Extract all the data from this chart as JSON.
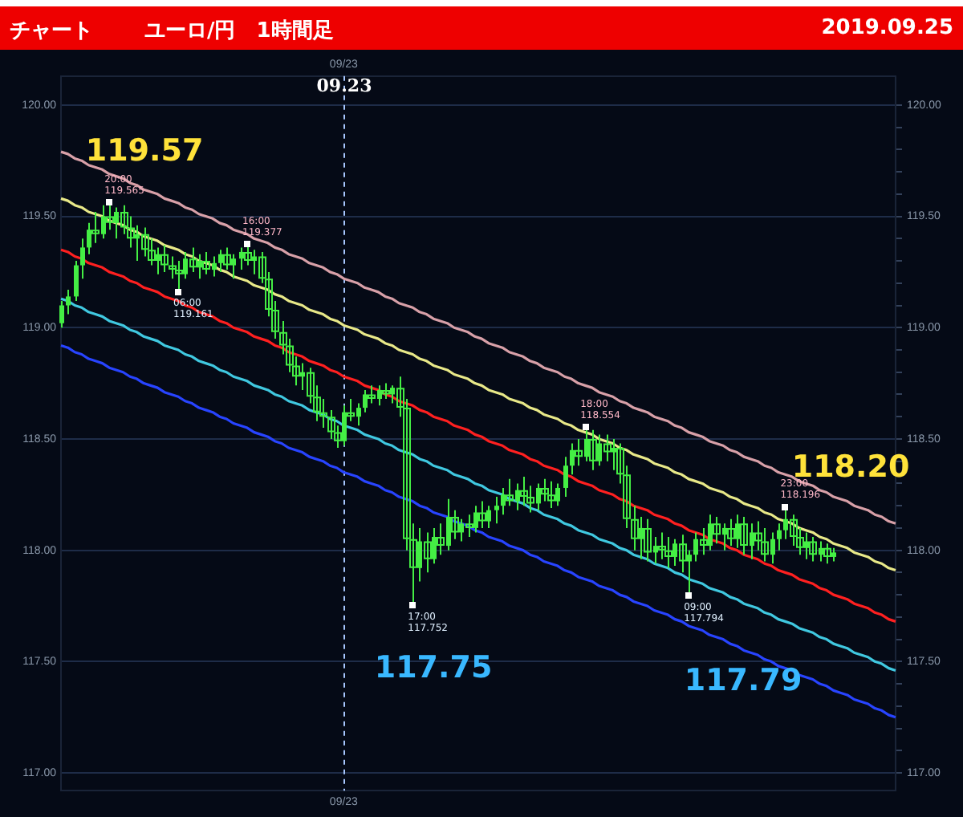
{
  "chart_data": {
    "type": "candlestick",
    "title": "チャート",
    "subtitle": "ユーロ/円　1時間足",
    "categories": [
      null,
      null,
      null,
      null,
      null,
      null,
      null,
      null,
      null,
      null,
      null,
      null,
      null,
      null,
      null,
      null,
      null,
      null,
      null,
      null,
      null,
      null,
      null,
      null,
      null,
      null,
      null,
      null,
      null,
      null,
      null,
      null,
      null,
      null,
      null,
      null,
      null,
      null,
      null,
      null,
      null,
      "09/23",
      null,
      null,
      null,
      null,
      null,
      null,
      null,
      null,
      null,
      null,
      null,
      null,
      null,
      null,
      null,
      null,
      null,
      null,
      null,
      null,
      null,
      null,
      null,
      null,
      null,
      null,
      null,
      null,
      null,
      null,
      null,
      null,
      null,
      null,
      null,
      null,
      null,
      null,
      null,
      null,
      null,
      null,
      null,
      null,
      null,
      null,
      null,
      null,
      null,
      null,
      null,
      null,
      null,
      null,
      null,
      null,
      null,
      null,
      null,
      null,
      null,
      null,
      null,
      null,
      null,
      null,
      null,
      null,
      null,
      null,
      null,
      null,
      null,
      null,
      null,
      null,
      null,
      null,
      null,
      null
    ],
    "color": "#44ee44",
    "ohlc": [
      [
        119.02,
        119.12,
        119.0,
        119.1
      ],
      [
        119.1,
        119.17,
        119.06,
        119.14
      ],
      [
        119.14,
        119.3,
        119.12,
        119.28
      ],
      [
        119.28,
        119.4,
        119.22,
        119.36
      ],
      [
        119.36,
        119.47,
        119.33,
        119.44
      ],
      [
        119.44,
        119.52,
        119.38,
        119.42
      ],
      [
        119.42,
        119.55,
        119.4,
        119.5
      ],
      [
        119.5,
        119.565,
        119.44,
        119.47
      ],
      [
        119.47,
        119.54,
        119.4,
        119.52
      ],
      [
        119.52,
        119.55,
        119.42,
        119.45
      ],
      [
        119.45,
        119.5,
        119.36,
        119.4
      ],
      [
        119.4,
        119.46,
        119.3,
        119.42
      ],
      [
        119.42,
        119.45,
        119.32,
        119.35
      ],
      [
        119.35,
        119.4,
        119.28,
        119.3
      ],
      [
        119.3,
        119.36,
        119.24,
        119.33
      ],
      [
        119.33,
        119.37,
        119.25,
        119.28
      ],
      [
        119.28,
        119.32,
        119.22,
        119.26
      ],
      [
        119.26,
        119.3,
        119.161,
        119.24
      ],
      [
        119.24,
        119.34,
        119.22,
        119.31
      ],
      [
        119.31,
        119.36,
        119.25,
        119.27
      ],
      [
        119.27,
        119.33,
        119.22,
        119.3
      ],
      [
        119.3,
        119.34,
        119.24,
        119.26
      ],
      [
        119.26,
        119.32,
        119.23,
        119.29
      ],
      [
        119.29,
        119.35,
        119.25,
        119.33
      ],
      [
        119.33,
        119.36,
        119.26,
        119.28
      ],
      [
        119.28,
        119.33,
        119.22,
        119.31
      ],
      [
        119.31,
        119.36,
        119.26,
        119.34
      ],
      [
        119.34,
        119.377,
        119.28,
        119.3
      ],
      [
        119.3,
        119.35,
        119.24,
        119.32
      ],
      [
        119.32,
        119.34,
        119.2,
        119.22
      ],
      [
        119.22,
        119.25,
        119.05,
        119.08
      ],
      [
        119.08,
        119.12,
        118.95,
        118.98
      ],
      [
        118.98,
        119.03,
        118.88,
        118.92
      ],
      [
        118.92,
        118.95,
        118.8,
        118.83
      ],
      [
        118.83,
        118.87,
        118.74,
        118.78
      ],
      [
        118.78,
        118.84,
        118.72,
        118.8
      ],
      [
        118.8,
        118.82,
        118.66,
        118.69
      ],
      [
        118.69,
        118.74,
        118.58,
        118.62
      ],
      [
        118.62,
        118.68,
        118.55,
        118.6
      ],
      [
        118.6,
        118.63,
        118.5,
        118.53
      ],
      [
        118.53,
        118.56,
        118.46,
        118.49
      ],
      [
        118.49,
        118.65,
        118.47,
        118.62
      ],
      [
        118.62,
        118.68,
        118.58,
        118.6
      ],
      [
        118.6,
        118.66,
        118.56,
        118.64
      ],
      [
        118.64,
        118.72,
        118.62,
        118.7
      ],
      [
        118.7,
        118.74,
        118.66,
        118.68
      ],
      [
        118.68,
        118.74,
        118.65,
        118.72
      ],
      [
        118.72,
        118.75,
        118.68,
        118.7
      ],
      [
        118.7,
        118.74,
        118.66,
        118.73
      ],
      [
        118.73,
        118.78,
        118.6,
        118.64
      ],
      [
        118.64,
        118.68,
        118.0,
        118.05
      ],
      [
        118.05,
        118.12,
        117.752,
        117.92
      ],
      [
        117.92,
        118.1,
        117.86,
        118.04
      ],
      [
        118.04,
        118.08,
        117.9,
        117.96
      ],
      [
        117.96,
        118.1,
        117.94,
        118.06
      ],
      [
        118.06,
        118.12,
        117.98,
        118.02
      ],
      [
        118.02,
        118.23,
        118.0,
        118.15
      ],
      [
        118.15,
        118.18,
        118.05,
        118.08
      ],
      [
        118.08,
        118.14,
        118.04,
        118.12
      ],
      [
        118.12,
        118.16,
        118.06,
        118.1
      ],
      [
        118.1,
        118.2,
        118.08,
        118.17
      ],
      [
        118.17,
        118.22,
        118.1,
        118.13
      ],
      [
        118.13,
        118.2,
        118.1,
        118.18
      ],
      [
        118.18,
        118.24,
        118.12,
        118.2
      ],
      [
        118.2,
        118.28,
        118.16,
        118.25
      ],
      [
        118.25,
        118.32,
        118.2,
        118.22
      ],
      [
        118.22,
        118.3,
        118.18,
        118.27
      ],
      [
        118.27,
        118.33,
        118.2,
        118.24
      ],
      [
        118.24,
        118.29,
        118.17,
        118.21
      ],
      [
        118.21,
        118.3,
        118.18,
        118.28
      ],
      [
        118.28,
        118.32,
        118.22,
        118.25
      ],
      [
        118.25,
        118.31,
        118.19,
        118.22
      ],
      [
        118.22,
        118.3,
        118.2,
        118.28
      ],
      [
        118.28,
        118.42,
        118.24,
        118.38
      ],
      [
        118.38,
        118.48,
        118.34,
        118.45
      ],
      [
        118.45,
        118.5,
        118.38,
        118.42
      ],
      [
        118.42,
        118.554,
        118.4,
        118.5
      ],
      [
        118.5,
        118.54,
        118.36,
        118.4
      ],
      [
        118.4,
        118.52,
        118.38,
        118.48
      ],
      [
        118.48,
        118.52,
        118.4,
        118.44
      ],
      [
        118.44,
        118.5,
        118.36,
        118.46
      ],
      [
        118.46,
        118.48,
        118.3,
        118.34
      ],
      [
        118.34,
        118.38,
        118.1,
        118.14
      ],
      [
        118.14,
        118.2,
        118.0,
        118.05
      ],
      [
        118.05,
        118.15,
        117.96,
        118.1
      ],
      [
        118.1,
        118.14,
        117.95,
        117.99
      ],
      [
        117.99,
        118.06,
        117.94,
        118.02
      ],
      [
        118.02,
        118.08,
        117.96,
        118.0
      ],
      [
        118.0,
        118.06,
        117.92,
        117.97
      ],
      [
        117.97,
        118.05,
        117.93,
        118.03
      ],
      [
        118.03,
        118.07,
        117.9,
        117.95
      ],
      [
        117.95,
        118.0,
        117.794,
        117.98
      ],
      [
        117.98,
        118.08,
        117.95,
        118.05
      ],
      [
        118.05,
        118.1,
        117.98,
        118.02
      ],
      [
        118.02,
        118.16,
        118.0,
        118.12
      ],
      [
        118.12,
        118.15,
        118.03,
        118.07
      ],
      [
        118.07,
        118.12,
        118.0,
        118.1
      ],
      [
        118.1,
        118.14,
        118.02,
        118.05
      ],
      [
        118.05,
        118.16,
        118.01,
        118.12
      ],
      [
        118.12,
        118.15,
        117.98,
        118.02
      ],
      [
        118.02,
        118.12,
        117.96,
        118.08
      ],
      [
        118.08,
        118.13,
        118.0,
        118.04
      ],
      [
        118.04,
        118.1,
        117.95,
        117.98
      ],
      [
        117.98,
        118.08,
        117.94,
        118.05
      ],
      [
        118.05,
        118.12,
        118.0,
        118.09
      ],
      [
        118.09,
        118.196,
        118.05,
        118.14
      ],
      [
        118.14,
        118.16,
        118.02,
        118.06
      ],
      [
        118.06,
        118.1,
        117.98,
        118.01
      ],
      [
        118.01,
        118.08,
        117.96,
        118.04
      ],
      [
        118.04,
        118.06,
        117.95,
        117.98
      ],
      [
        117.98,
        118.04,
        117.95,
        118.01
      ],
      [
        118.01,
        118.03,
        117.94,
        117.97
      ],
      [
        117.97,
        118.01,
        117.95,
        117.99
      ],
      null,
      null,
      null,
      null,
      null,
      null,
      null,
      null,
      null
    ],
    "series": [
      {
        "type": "line",
        "color": "#d8a0a8",
        "values": [
          119.79,
          119.78,
          119.76,
          119.75,
          119.73,
          119.72,
          119.71,
          119.69,
          119.68,
          119.67,
          119.65,
          119.64,
          119.62,
          119.61,
          119.6,
          119.58,
          119.57,
          119.56,
          119.54,
          119.53,
          119.51,
          119.5,
          119.49,
          119.47,
          119.46,
          119.44,
          119.43,
          119.42,
          119.4,
          119.39,
          119.38,
          119.36,
          119.35,
          119.33,
          119.32,
          119.31,
          119.29,
          119.28,
          119.27,
          119.25,
          119.24,
          119.22,
          119.21,
          119.2,
          119.18,
          119.17,
          119.16,
          119.14,
          119.13,
          119.11,
          119.1,
          119.09,
          119.07,
          119.06,
          119.04,
          119.03,
          119.02,
          119.0,
          118.99,
          118.98,
          118.96,
          118.95,
          118.93,
          118.92,
          118.91,
          118.89,
          118.88,
          118.87,
          118.85,
          118.84,
          118.82,
          118.81,
          118.8,
          118.78,
          118.77,
          118.75,
          118.74,
          118.73,
          118.71,
          118.7,
          118.69,
          118.67,
          118.66,
          118.64,
          118.63,
          118.62,
          118.6,
          118.59,
          118.58,
          118.56,
          118.55,
          118.53,
          118.52,
          118.51,
          118.49,
          118.48,
          118.47,
          118.45,
          118.44,
          118.42,
          118.41,
          118.4,
          118.38,
          118.37,
          118.35,
          118.34,
          118.33,
          118.31,
          118.3,
          118.29,
          118.27,
          118.26,
          118.24,
          118.23,
          118.22,
          118.2,
          118.19,
          118.18,
          118.16,
          118.15,
          118.13,
          118.12
        ]
      },
      {
        "type": "line",
        "color": "#e8e888",
        "values": [
          119.58,
          119.57,
          119.55,
          119.54,
          119.52,
          119.51,
          119.5,
          119.48,
          119.47,
          119.46,
          119.44,
          119.43,
          119.41,
          119.4,
          119.39,
          119.37,
          119.36,
          119.35,
          119.33,
          119.32,
          119.3,
          119.29,
          119.28,
          119.26,
          119.25,
          119.23,
          119.22,
          119.21,
          119.19,
          119.18,
          119.17,
          119.15,
          119.14,
          119.12,
          119.11,
          119.1,
          119.08,
          119.07,
          119.06,
          119.04,
          119.03,
          119.01,
          119.0,
          118.99,
          118.97,
          118.96,
          118.95,
          118.93,
          118.92,
          118.9,
          118.89,
          118.88,
          118.86,
          118.85,
          118.83,
          118.82,
          118.81,
          118.79,
          118.78,
          118.77,
          118.75,
          118.74,
          118.72,
          118.71,
          118.7,
          118.68,
          118.67,
          118.66,
          118.64,
          118.63,
          118.61,
          118.6,
          118.59,
          118.57,
          118.56,
          118.54,
          118.53,
          118.52,
          118.5,
          118.49,
          118.48,
          118.46,
          118.45,
          118.43,
          118.42,
          118.41,
          118.39,
          118.38,
          118.37,
          118.35,
          118.34,
          118.32,
          118.31,
          118.3,
          118.28,
          118.27,
          118.26,
          118.24,
          118.23,
          118.21,
          118.2,
          118.19,
          118.17,
          118.16,
          118.14,
          118.13,
          118.12,
          118.1,
          118.09,
          118.08,
          118.06,
          118.05,
          118.03,
          118.02,
          118.01,
          117.99,
          117.98,
          117.97,
          117.95,
          117.94,
          117.92,
          117.91
        ]
      },
      {
        "type": "line",
        "color": "#ff2020",
        "values": [
          119.35,
          119.34,
          119.32,
          119.31,
          119.29,
          119.28,
          119.27,
          119.25,
          119.24,
          119.23,
          119.21,
          119.2,
          119.18,
          119.17,
          119.16,
          119.14,
          119.13,
          119.12,
          119.1,
          119.09,
          119.07,
          119.06,
          119.05,
          119.03,
          119.02,
          119.0,
          118.99,
          118.98,
          118.96,
          118.95,
          118.94,
          118.92,
          118.91,
          118.89,
          118.88,
          118.87,
          118.85,
          118.84,
          118.83,
          118.81,
          118.8,
          118.78,
          118.77,
          118.76,
          118.74,
          118.73,
          118.72,
          118.7,
          118.69,
          118.67,
          118.66,
          118.65,
          118.63,
          118.62,
          118.6,
          118.59,
          118.58,
          118.56,
          118.55,
          118.54,
          118.52,
          118.51,
          118.49,
          118.48,
          118.47,
          118.45,
          118.44,
          118.43,
          118.41,
          118.4,
          118.38,
          118.37,
          118.36,
          118.34,
          118.33,
          118.31,
          118.3,
          118.29,
          118.27,
          118.26,
          118.25,
          118.23,
          118.22,
          118.2,
          118.19,
          118.18,
          118.16,
          118.15,
          118.14,
          118.12,
          118.11,
          118.09,
          118.08,
          118.07,
          118.05,
          118.04,
          118.03,
          118.01,
          118.0,
          117.98,
          117.97,
          117.96,
          117.94,
          117.93,
          117.91,
          117.9,
          117.89,
          117.87,
          117.86,
          117.85,
          117.83,
          117.82,
          117.8,
          117.79,
          117.78,
          117.76,
          117.75,
          117.74,
          117.72,
          117.71,
          117.69,
          117.68
        ]
      },
      {
        "type": "line",
        "color": "#40c8e0",
        "values": [
          119.13,
          119.12,
          119.1,
          119.09,
          119.07,
          119.06,
          119.05,
          119.03,
          119.02,
          119.01,
          118.99,
          118.98,
          118.96,
          118.95,
          118.94,
          118.92,
          118.91,
          118.9,
          118.88,
          118.87,
          118.85,
          118.84,
          118.83,
          118.81,
          118.8,
          118.78,
          118.77,
          118.76,
          118.74,
          118.73,
          118.72,
          118.7,
          118.69,
          118.67,
          118.66,
          118.65,
          118.63,
          118.62,
          118.61,
          118.59,
          118.58,
          118.56,
          118.55,
          118.54,
          118.52,
          118.51,
          118.5,
          118.48,
          118.47,
          118.45,
          118.44,
          118.43,
          118.41,
          118.4,
          118.38,
          118.37,
          118.36,
          118.34,
          118.33,
          118.32,
          118.3,
          118.29,
          118.27,
          118.26,
          118.25,
          118.23,
          118.22,
          118.21,
          118.19,
          118.18,
          118.16,
          118.15,
          118.14,
          118.12,
          118.11,
          118.09,
          118.08,
          118.07,
          118.05,
          118.04,
          118.03,
          118.01,
          118.0,
          117.98,
          117.97,
          117.96,
          117.94,
          117.93,
          117.92,
          117.9,
          117.89,
          117.87,
          117.86,
          117.85,
          117.83,
          117.82,
          117.81,
          117.79,
          117.78,
          117.76,
          117.75,
          117.74,
          117.72,
          117.71,
          117.69,
          117.68,
          117.67,
          117.65,
          117.64,
          117.63,
          117.61,
          117.6,
          117.58,
          117.57,
          117.56,
          117.54,
          117.53,
          117.52,
          117.5,
          117.49,
          117.47,
          117.46
        ]
      },
      {
        "type": "line",
        "color": "#2844ff",
        "values": [
          118.92,
          118.91,
          118.89,
          118.88,
          118.86,
          118.85,
          118.84,
          118.82,
          118.81,
          118.8,
          118.78,
          118.77,
          118.75,
          118.74,
          118.73,
          118.71,
          118.7,
          118.69,
          118.67,
          118.66,
          118.64,
          118.63,
          118.62,
          118.6,
          118.59,
          118.57,
          118.56,
          118.55,
          118.53,
          118.52,
          118.51,
          118.49,
          118.48,
          118.46,
          118.45,
          118.44,
          118.42,
          118.41,
          118.4,
          118.38,
          118.37,
          118.35,
          118.34,
          118.33,
          118.31,
          118.3,
          118.29,
          118.27,
          118.26,
          118.24,
          118.23,
          118.22,
          118.2,
          118.19,
          118.17,
          118.16,
          118.15,
          118.13,
          118.12,
          118.11,
          118.09,
          118.08,
          118.06,
          118.05,
          118.04,
          118.02,
          118.01,
          118.0,
          117.98,
          117.97,
          117.95,
          117.94,
          117.93,
          117.91,
          117.9,
          117.88,
          117.87,
          117.86,
          117.84,
          117.83,
          117.82,
          117.8,
          117.79,
          117.77,
          117.76,
          117.75,
          117.73,
          117.72,
          117.71,
          117.69,
          117.68,
          117.66,
          117.65,
          117.64,
          117.62,
          117.61,
          117.6,
          117.58,
          117.57,
          117.55,
          117.54,
          117.53,
          117.51,
          117.5,
          117.48,
          117.47,
          117.46,
          117.44,
          117.43,
          117.42,
          117.4,
          117.39,
          117.37,
          117.36,
          117.35,
          117.33,
          117.32,
          117.31,
          117.29,
          117.28,
          117.26,
          117.25
        ]
      }
    ],
    "ylim": [
      116.92,
      120.13
    ],
    "yticks": [
      {
        "value": 117,
        "label": "117.00"
      },
      {
        "value": 117.5,
        "label": "117.50"
      },
      {
        "value": 118,
        "label": "118.00"
      },
      {
        "value": 118.5,
        "label": "118.50"
      },
      {
        "value": 119,
        "label": "119.00"
      },
      {
        "value": 119.5,
        "label": "119.50"
      },
      {
        "value": 120,
        "label": "120.00"
      }
    ],
    "y2lim": [
      116.92,
      120.13
    ],
    "y2ticks": [
      {
        "value": 117,
        "label": "117.00"
      },
      {
        "value": 117.1,
        "label": null
      },
      {
        "value": 117.2,
        "label": null
      },
      {
        "value": 117.3,
        "label": null
      },
      {
        "value": 117.4,
        "label": null
      },
      {
        "value": 117.5,
        "label": "117.50"
      },
      {
        "value": 117.6,
        "label": null
      },
      {
        "value": 117.7,
        "label": null
      },
      {
        "value": 117.8,
        "label": null
      },
      {
        "value": 117.9,
        "label": null
      },
      {
        "value": 118,
        "label": "118.00"
      },
      {
        "value": 118.1,
        "label": null
      },
      {
        "value": 118.2,
        "label": null
      },
      {
        "value": 118.3,
        "label": null
      },
      {
        "value": 118.4,
        "label": null
      },
      {
        "value": 118.5,
        "label": "118.50"
      },
      {
        "value": 118.6,
        "label": null
      },
      {
        "value": 118.7,
        "label": null
      },
      {
        "value": 118.8,
        "label": null
      },
      {
        "value": 118.9,
        "label": null
      },
      {
        "value": 119,
        "label": "119.00"
      },
      {
        "value": 119.1,
        "label": null
      },
      {
        "value": 119.2,
        "label": null
      },
      {
        "value": 119.3,
        "label": null
      },
      {
        "value": 119.4,
        "label": null
      },
      {
        "value": 119.5,
        "label": "119.50"
      },
      {
        "value": 119.6,
        "label": null
      },
      {
        "value": 119.7,
        "label": null
      },
      {
        "value": 119.8,
        "label": null
      },
      {
        "value": 119.9,
        "label": null
      },
      {
        "value": 120,
        "label": "120.00"
      }
    ],
    "grid": "y",
    "ref_lines": [
      {
        "axis": "x",
        "value": "09/23",
        "label": "09.23",
        "color": "#a8c8ff",
        "line_style": "dashed"
      }
    ],
    "annotations": [
      "2019.09.25",
      "119.57",
      "118.20",
      "117.75",
      "117.79",
      "20:00\n119.565",
      "06:00\n119.161",
      "16:00\n119.377",
      "17:00\n117.752",
      "18:00\n118.554",
      "09:00\n117.794",
      "23:00\n118.196"
    ]
  }
}
